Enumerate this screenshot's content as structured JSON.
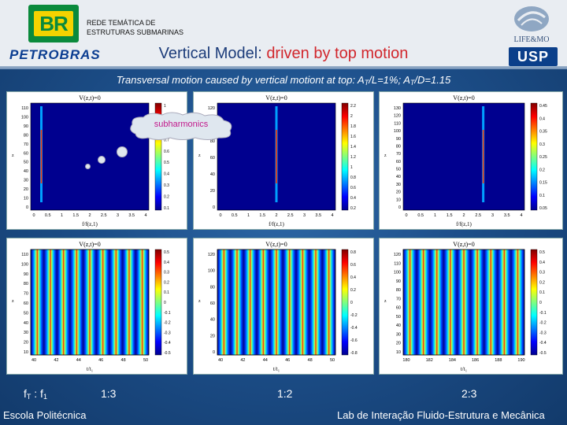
{
  "header": {
    "logo_text": "BR",
    "brand": "PETROBRAS",
    "network_line1": "REDE TEMÁTICA DE",
    "network_line2": "ESTRUTURAS SUBMARINAS",
    "title_prefix": "Vertical Model: ",
    "title_highlight": "driven by top motion",
    "lab_logo": "LIFE&MO",
    "university_logo": "USP"
  },
  "subtitle": {
    "text_a": "Transversal motion caused by vertical motiont at top:  A",
    "sub_t1": "T",
    "text_b": "/L=1%;   A",
    "sub_t2": "T",
    "text_c": "/D=1.15"
  },
  "annotation": {
    "cloud_text": "subharmonics"
  },
  "ratios": {
    "left_f": "f",
    "left_sub_t": "T",
    "left_sep": " : f",
    "left_sub_1": "1",
    "r1": "1:3",
    "r2": "1:2",
    "r3": "2:3"
  },
  "footer": {
    "left": "Escola Politécnica",
    "right": "Lab de Interação Fluido-Estrutura e Mecânica"
  },
  "plots": {
    "top_label": "V(z,t)=0",
    "spectrum_xlabel": "f/f(z,1)",
    "time_xlabel": "t/t₁",
    "zlabel": "z",
    "panels": [
      {
        "yticks": [
          "110",
          "100",
          "90",
          "80",
          "70",
          "60",
          "50",
          "40",
          "30",
          "20",
          "10",
          "0"
        ],
        "xticks": [
          "0",
          "0.5",
          "1",
          "1.5",
          "2",
          "2.5",
          "3",
          "3.5",
          "4"
        ],
        "cbar": [
          "1",
          "0.9",
          "0.8",
          "0.7",
          "0.6",
          "0.5",
          "0.4",
          "0.3",
          "0.2",
          "0.1"
        ]
      },
      {
        "yticks": [
          "120",
          "100",
          "80",
          "60",
          "40",
          "20",
          "0"
        ],
        "xticks": [
          "0",
          "0.5",
          "1",
          "1.5",
          "2",
          "2.5",
          "3",
          "3.5",
          "4"
        ],
        "cbar": [
          "2.2",
          "2",
          "1.8",
          "1.6",
          "1.4",
          "1.2",
          "1",
          "0.8",
          "0.6",
          "0.4",
          "0.2"
        ]
      },
      {
        "yticks": [
          "130",
          "120",
          "110",
          "100",
          "90",
          "80",
          "70",
          "60",
          "50",
          "40",
          "30",
          "20",
          "10",
          "0"
        ],
        "xticks": [
          "0",
          "0.5",
          "1",
          "1.5",
          "2",
          "2.5",
          "3",
          "3.5",
          "4"
        ],
        "cbar": [
          "0.45",
          "0.4",
          "0.35",
          "0.3",
          "0.25",
          "0.2",
          "0.15",
          "0.1",
          "0.05"
        ]
      },
      {
        "yticks": [
          "110",
          "100",
          "90",
          "80",
          "70",
          "60",
          "50",
          "40",
          "30",
          "20",
          "10"
        ],
        "xticks": [
          "40",
          "42",
          "44",
          "46",
          "48",
          "50"
        ],
        "cbar": [
          "0.5",
          "0.4",
          "0.3",
          "0.2",
          "0.1",
          "0",
          "-0.1",
          "-0.2",
          "-0.3",
          "-0.4",
          "-0.5"
        ]
      },
      {
        "yticks": [
          "120",
          "100",
          "80",
          "60",
          "40",
          "20",
          "0"
        ],
        "xticks": [
          "40",
          "42",
          "44",
          "46",
          "48",
          "50"
        ],
        "cbar": [
          "0.8",
          "0.6",
          "0.4",
          "0.2",
          "0",
          "-0.2",
          "-0.4",
          "-0.6",
          "-0.8"
        ]
      },
      {
        "yticks": [
          "120",
          "110",
          "100",
          "90",
          "80",
          "70",
          "60",
          "50",
          "40",
          "30",
          "20",
          "10"
        ],
        "xticks": [
          "180",
          "182",
          "184",
          "186",
          "188",
          "190"
        ],
        "cbar": [
          "0.5",
          "0.4",
          "0.3",
          "0.2",
          "0.1",
          "0",
          "-0.1",
          "-0.2",
          "-0.3",
          "-0.4",
          "-0.5"
        ]
      }
    ]
  },
  "colors": {
    "background": "#1d4f8a",
    "highlight": "#d1262c",
    "title": "#1c3c7a",
    "annotation": "#c2188a"
  }
}
